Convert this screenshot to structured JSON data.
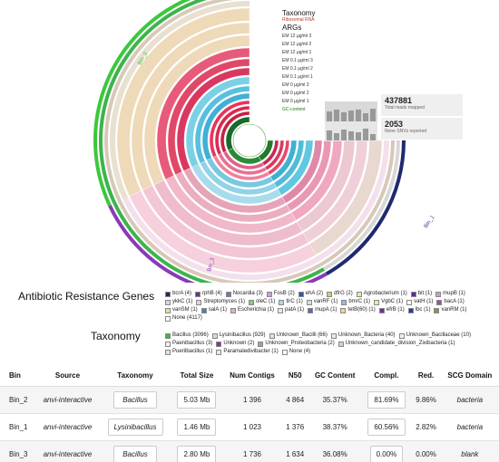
{
  "figure": {
    "layer_labels": [
      "Taxonomy",
      "Ribosomal RNA",
      "ARGs",
      "EM 12 µg/ml 3",
      "EM 12 µg/ml 2",
      "EM 12 µg/ml 1",
      "EM 0.1 µg/ml 3",
      "EM 0.1 µg/ml 2",
      "EM 0.1 µg/ml 1",
      "EM 0 µg/ml 3",
      "EM 0 µg/ml 2",
      "EM 0 µg/ml 1",
      "GC-content"
    ],
    "layer_label_colors": [
      "#111111",
      "#c0392b",
      "#111111",
      "#333333",
      "#333333",
      "#333333",
      "#333333",
      "#333333",
      "#333333",
      "#333333",
      "#333333",
      "#333333",
      "#1a7a1a"
    ],
    "bin_labels": [
      "Bin_1",
      "Bin_2",
      "Bin_3"
    ],
    "stats": [
      {
        "value": "437881",
        "label": "Total reads mapped"
      },
      {
        "value": "2053",
        "label": "None SNVs reported"
      }
    ]
  },
  "args_legend": {
    "title": "Antibiotic Resistance Genes",
    "items": [
      {
        "label": "bcrA (4)",
        "color": "#1f2a5a"
      },
      {
        "label": "rphB (4)",
        "color": "#5a3a8a"
      },
      {
        "label": "Nocardia (3)",
        "color": "#8a6ab0"
      },
      {
        "label": "FosB (2)",
        "color": "#c8a0d8"
      },
      {
        "label": "ehA (2)",
        "color": "#2b5aa8"
      },
      {
        "label": "dfrG (2)",
        "color": "#b8d878"
      },
      {
        "label": "Agrobacterium (1)",
        "color": "#e8e8a0"
      },
      {
        "label": "bit (1)",
        "color": "#5a2aa0"
      },
      {
        "label": "mupB (1)",
        "color": "#c0a0e0"
      },
      {
        "label": "ykkC (1)",
        "color": "#d8d8d8"
      },
      {
        "label": "Streptomyces (1)",
        "color": "#f0c8e0"
      },
      {
        "label": "oleC (1)",
        "color": "#88c878"
      },
      {
        "label": "tlrC (1)",
        "color": "#a8d8f0"
      },
      {
        "label": "vanRF (1)",
        "color": "#c8e8c8"
      },
      {
        "label": "bmrC (1)",
        "color": "#9ab8d8"
      },
      {
        "label": "VgbC (1)",
        "color": "#f0e8a8"
      },
      {
        "label": "vatH (1)",
        "color": "#ffffff"
      },
      {
        "label": "bacA (1)",
        "color": "#8a5aa0"
      },
      {
        "label": "vanSM (1)",
        "color": "#e0e0a0"
      },
      {
        "label": "salA (1)",
        "color": "#3a8ac0"
      },
      {
        "label": "Escherichia (1)",
        "color": "#d8b0d8"
      },
      {
        "label": "patA (1)",
        "color": "#e8e8e8"
      },
      {
        "label": "mupA (1)",
        "color": "#5a6ab8"
      },
      {
        "label": "tetB(60) (1)",
        "color": "#f0d0a0"
      },
      {
        "label": "efrB (1)",
        "color": "#7a2a9a"
      },
      {
        "label": "lbc (1)",
        "color": "#2a3aa0"
      },
      {
        "label": "vanRM (1)",
        "color": "#7a9a5a"
      },
      {
        "label": "None (4117)",
        "color": "#ffffff"
      }
    ]
  },
  "taxonomy_legend": {
    "title": "Taxonomy",
    "items": [
      {
        "label": "Bacillus (3096)",
        "color": "#3cb44b"
      },
      {
        "label": "Lysinibacillus (929)",
        "color": "#d8d8d8"
      },
      {
        "label": "Unknown_Bacilli (66)",
        "color": "#e0e0e0"
      },
      {
        "label": "Unknown_Bacteria (40)",
        "color": "#e8e8e8"
      },
      {
        "label": "Unknown_Bacillaceae (10)",
        "color": "#f0f0f0"
      },
      {
        "label": "Paenibacillus (3)",
        "color": "#f0f0f0"
      },
      {
        "label": "Unknown (2)",
        "color": "#7a3aa0"
      },
      {
        "label": "Unknown_Proteobacteria (2)",
        "color": "#a0a0a0"
      },
      {
        "label": "Unknown_candidate_division_Zixibacteria (1)",
        "color": "#d0d0d0"
      },
      {
        "label": "Puerilbacillus (1)",
        "color": "#e0e0e0"
      },
      {
        "label": "Paramaledivibacter (1)",
        "color": "#e8e8e8"
      },
      {
        "label": "None (4)",
        "color": "#ffffff"
      }
    ]
  },
  "table": {
    "headers": [
      "Bin",
      "Source",
      "Taxonomy",
      "Total Size",
      "Num Contigs",
      "N50",
      "GC Content",
      "Compl.",
      "Red.",
      "SCG Domain"
    ],
    "rows": [
      {
        "bin": "Bin_2",
        "source": "anvi-interactive",
        "taxonomy": "Bacillus",
        "size": "5.03 Mb",
        "contigs": "1 396",
        "n50": "4 864",
        "gc": "35.37%",
        "compl": "81.69%",
        "red": "9.86%",
        "domain": "bacteria"
      },
      {
        "bin": "Bin_1",
        "source": "anvi-interactive",
        "taxonomy": "Lysinibacillus",
        "size": "1.46 Mb",
        "contigs": "1 023",
        "n50": "1 376",
        "gc": "38.37%",
        "compl": "60.56%",
        "red": "2.82%",
        "domain": "bacteria"
      },
      {
        "bin": "Bin_3",
        "source": "anvi-interactive",
        "taxonomy": "Bacillus",
        "size": "2.80 Mb",
        "contigs": "1 736",
        "n50": "1 634",
        "gc": "36.08%",
        "compl": "0.00%",
        "red": "0.00%",
        "domain": "blank"
      }
    ]
  }
}
